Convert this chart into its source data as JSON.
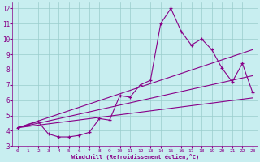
{
  "background_color": "#c8eef0",
  "grid_color": "#99cccc",
  "line_color": "#880088",
  "axis_color": "#880088",
  "xlim": [
    -0.5,
    23.5
  ],
  "ylim": [
    3,
    12.4
  ],
  "yticks": [
    3,
    4,
    5,
    6,
    7,
    8,
    9,
    10,
    11,
    12
  ],
  "xticks": [
    0,
    1,
    2,
    3,
    4,
    5,
    6,
    7,
    8,
    9,
    10,
    11,
    12,
    13,
    14,
    15,
    16,
    17,
    18,
    19,
    20,
    21,
    22,
    23
  ],
  "xlabel": "Windchill (Refroidissement éolien,°C)",
  "main_x": [
    0,
    1,
    2,
    3,
    4,
    5,
    6,
    7,
    8,
    9,
    10,
    11,
    12,
    13,
    14,
    15,
    16,
    17,
    18,
    19,
    20,
    21,
    22,
    23
  ],
  "main_y": [
    4.2,
    4.4,
    4.6,
    3.8,
    3.6,
    3.6,
    3.7,
    3.9,
    4.8,
    4.7,
    6.3,
    6.2,
    7.0,
    7.3,
    11.0,
    12.0,
    10.5,
    9.6,
    10.0,
    9.3,
    8.1,
    7.2,
    8.4,
    6.5
  ],
  "env_lines": [
    {
      "x": [
        0,
        23
      ],
      "y": [
        4.2,
        6.15
      ]
    },
    {
      "x": [
        0,
        23
      ],
      "y": [
        4.2,
        7.6
      ]
    },
    {
      "x": [
        0,
        23
      ],
      "y": [
        4.2,
        9.3
      ]
    }
  ]
}
